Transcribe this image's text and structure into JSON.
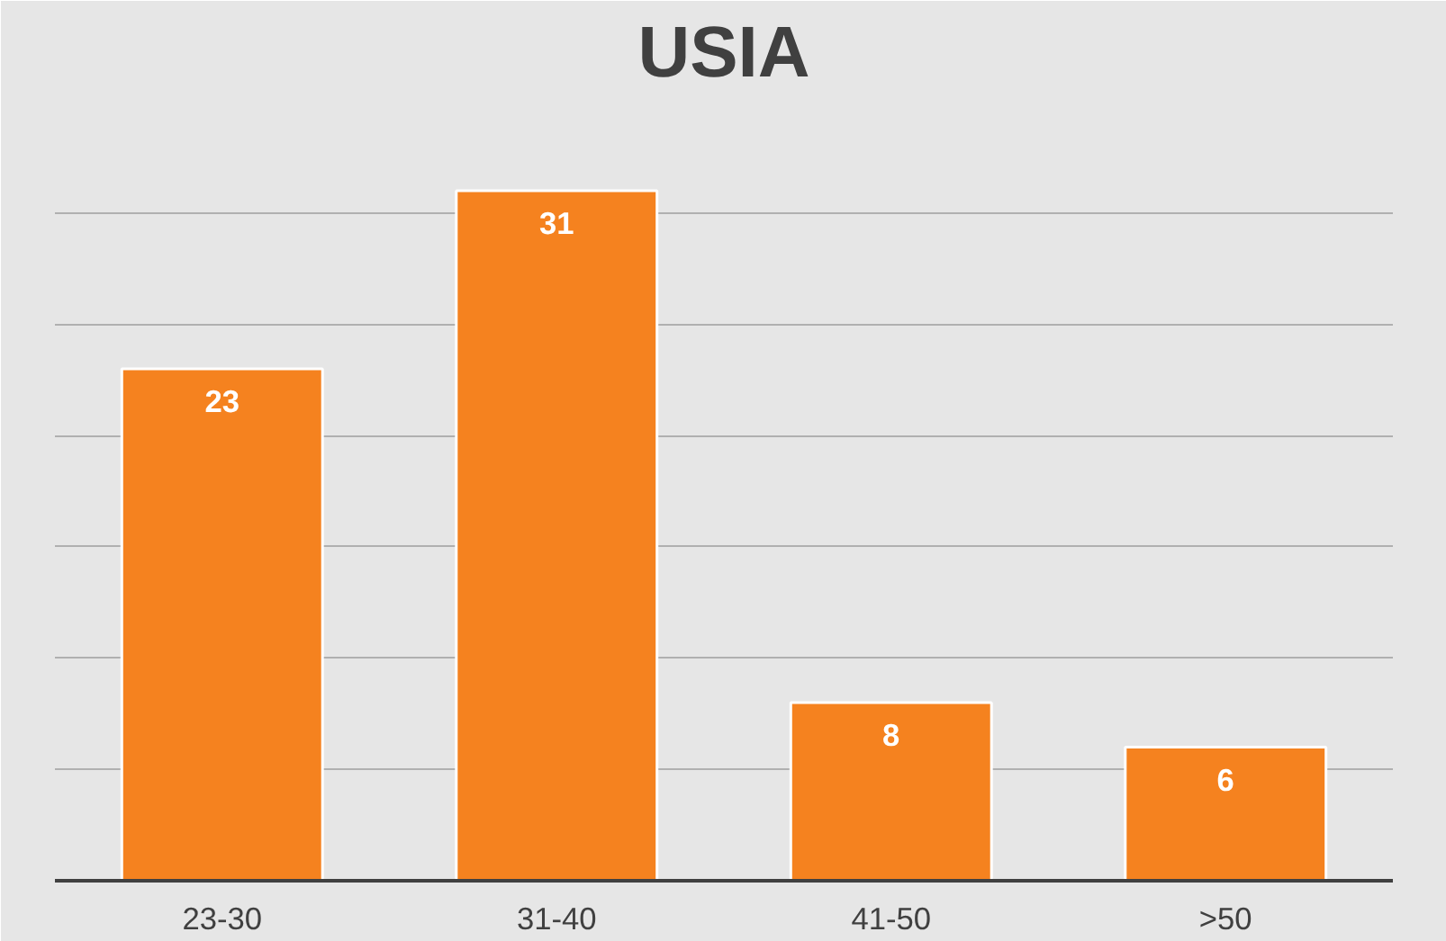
{
  "chart_data": {
    "type": "bar",
    "title": "USIA",
    "categories": [
      "23-30",
      "31-40",
      "41-50",
      ">50"
    ],
    "values": [
      23,
      31,
      8,
      6
    ],
    "color": "#f5821f",
    "ylim": [
      0,
      35
    ],
    "yticks": [
      0,
      5,
      10,
      15,
      20,
      25,
      30,
      35
    ],
    "grid": "y",
    "tick_labels": "x",
    "data_labels": true
  }
}
